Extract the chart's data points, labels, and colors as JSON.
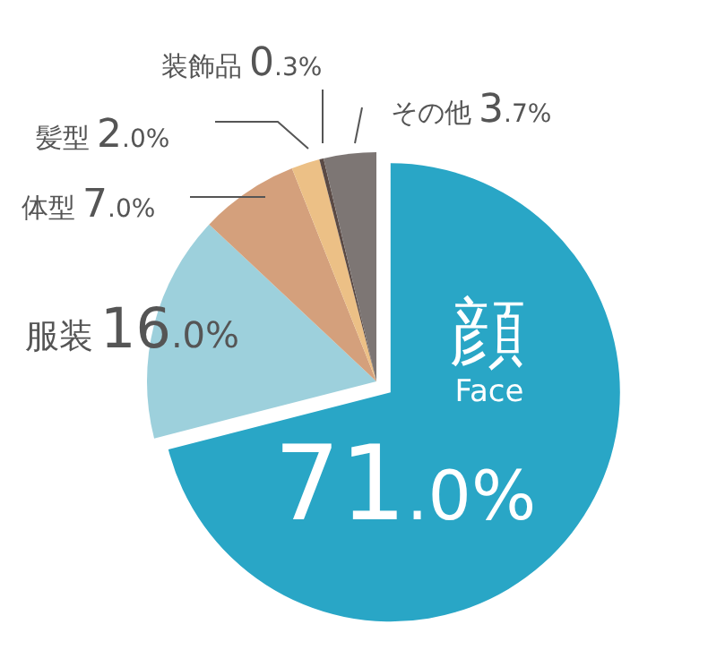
{
  "chart_data": {
    "type": "pie",
    "categories": [
      "顔 Face",
      "服装",
      "体型",
      "髪型",
      "装飾品",
      "その他"
    ],
    "values": [
      71.0,
      16.0,
      7.0,
      2.0,
      0.3,
      3.7
    ],
    "value_labels": [
      "71.0%",
      "16.0%",
      "7.0%",
      "2.0%",
      "0.3%",
      "3.7%"
    ],
    "colors": [
      "#29a6c6",
      "#9dd0dc",
      "#d4a07c",
      "#ecc086",
      "#5a4a45",
      "#7d7674"
    ]
  }
}
